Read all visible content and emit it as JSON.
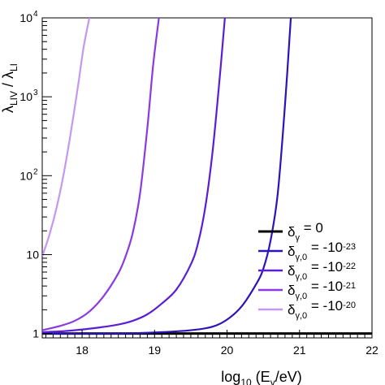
{
  "chart_data": {
    "type": "line",
    "xlabel_main": "log",
    "xlabel_sub1": "10",
    "xlabel_mid1": " (E",
    "xlabel_sub2": "γ",
    "xlabel_mid2": "/eV)",
    "ylabel_main1": "λ",
    "ylabel_sub1": "LIV",
    "ylabel_mid": " / λ",
    "ylabel_sub2": "LI",
    "xlim": [
      17.45,
      22.0
    ],
    "ylim": [
      0.88,
      10000
    ],
    "yscale": "log",
    "x_ticks": [
      {
        "v": 18,
        "label": "18"
      },
      {
        "v": 19,
        "label": "19"
      },
      {
        "v": 20,
        "label": "20"
      },
      {
        "v": 21,
        "label": "21"
      },
      {
        "v": 22,
        "label": "22"
      }
    ],
    "y_ticks": [
      {
        "v": 1,
        "label": "1"
      },
      {
        "v": 10,
        "label": "10"
      },
      {
        "v": 100,
        "label": "10",
        "exp": "2"
      },
      {
        "v": 1000,
        "label": "10",
        "exp": "3"
      },
      {
        "v": 10000,
        "label": "10",
        "exp": "4"
      }
    ],
    "series": [
      {
        "name_base": "δ",
        "name_sub": "γ",
        "name_eq": " = 0",
        "name_exp": "",
        "color": "#000000",
        "x": [
          17.45,
          22.0
        ],
        "y": [
          1,
          1
        ]
      },
      {
        "name_base": "δ",
        "name_sub": "γ,0",
        "name_eq": " = -10",
        "name_exp": "-23",
        "color": "#2b14b8",
        "x": [
          17.45,
          18.5,
          19.0,
          19.5,
          19.8,
          20.0,
          20.2,
          20.4,
          20.5,
          20.6,
          20.7,
          20.8,
          20.88
        ],
        "y": [
          1,
          1.0,
          1.03,
          1.1,
          1.22,
          1.5,
          2.2,
          4.2,
          6.6,
          15,
          60,
          800,
          10000
        ]
      },
      {
        "name_base": "δ",
        "name_sub": "γ,0",
        "name_eq": " = -10",
        "name_exp": "-22",
        "color": "#5a1ed6",
        "x": [
          17.45,
          17.8,
          18.2,
          18.5,
          18.7,
          18.9,
          19.1,
          19.3,
          19.5,
          19.6,
          19.7,
          19.8,
          19.9,
          19.97
        ],
        "y": [
          1.04,
          1.08,
          1.18,
          1.3,
          1.45,
          1.75,
          2.4,
          3.6,
          7.5,
          14,
          40,
          200,
          1800,
          10000
        ]
      },
      {
        "name_base": "δ",
        "name_sub": "γ,0",
        "name_eq": " = -10",
        "name_exp": "-21",
        "color": "#8a3ae0",
        "x": [
          17.45,
          17.7,
          17.9,
          18.1,
          18.3,
          18.5,
          18.6,
          18.7,
          18.8,
          18.9,
          18.98,
          19.06
        ],
        "y": [
          1.1,
          1.25,
          1.45,
          1.9,
          3.0,
          5.8,
          9.5,
          19,
          60,
          400,
          2500,
          10000
        ]
      },
      {
        "name_base": "δ",
        "name_sub": "γ,0",
        "name_eq": " = -10",
        "name_exp": "-20",
        "color": "#c497f2",
        "x": [
          17.45,
          17.55,
          17.65,
          17.75,
          17.85,
          17.95,
          18.02,
          18.1
        ],
        "y": [
          9.5,
          18,
          40,
          110,
          380,
          1500,
          4200,
          10000
        ]
      }
    ]
  }
}
